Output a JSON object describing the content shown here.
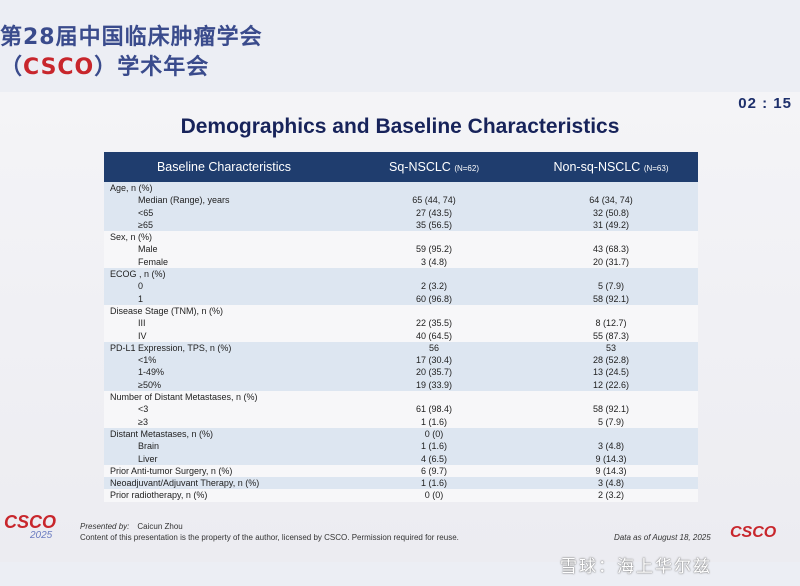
{
  "conference": {
    "line1": "第28届中国临床肿瘤学会",
    "line2_pre": "（",
    "line2_brand": "CSCO",
    "line2_post": "）学术年会"
  },
  "timer": "02 : 15",
  "title": "Demographics and Baseline Characteristics",
  "table": {
    "headers": {
      "col0": "Baseline Characteristics",
      "col1": "Sq-NSCLC",
      "col1_n": "(N=62)",
      "col2": "Non-sq-NSCLC",
      "col2_n": "(N=63)"
    },
    "rows": [
      {
        "label": "Age, n (%)",
        "sq": "",
        "nonsq": "",
        "indent": false,
        "shade": true
      },
      {
        "label": "Median (Range), years",
        "sq": "65 (44, 74)",
        "nonsq": "64 (34, 74)",
        "indent": true,
        "shade": true
      },
      {
        "label": "<65",
        "sq": "27 (43.5)",
        "nonsq": "32 (50.8)",
        "indent": true,
        "shade": true
      },
      {
        "label": "≥65",
        "sq": "35 (56.5)",
        "nonsq": "31 (49.2)",
        "indent": true,
        "shade": true
      },
      {
        "label": "Sex, n (%)",
        "sq": "",
        "nonsq": "",
        "indent": false,
        "shade": false
      },
      {
        "label": "Male",
        "sq": "59 (95.2)",
        "nonsq": "43 (68.3)",
        "indent": true,
        "shade": false
      },
      {
        "label": "Female",
        "sq": "3 (4.8)",
        "nonsq": "20 (31.7)",
        "indent": true,
        "shade": false
      },
      {
        "label": "ECOG , n (%)",
        "sq": "",
        "nonsq": "",
        "indent": false,
        "shade": true
      },
      {
        "label": "0",
        "sq": "2 (3.2)",
        "nonsq": "5 (7.9)",
        "indent": true,
        "shade": true
      },
      {
        "label": "1",
        "sq": "60 (96.8)",
        "nonsq": "58 (92.1)",
        "indent": true,
        "shade": true
      },
      {
        "label": "Disease Stage (TNM), n (%)",
        "sq": "",
        "nonsq": "",
        "indent": false,
        "shade": false
      },
      {
        "label": "III",
        "sq": "22 (35.5)",
        "nonsq": "8 (12.7)",
        "indent": true,
        "shade": false
      },
      {
        "label": "IV",
        "sq": "40 (64.5)",
        "nonsq": "55 (87.3)",
        "indent": true,
        "shade": false
      },
      {
        "label": "PD-L1 Expression, TPS, n (%)",
        "sq": "56",
        "nonsq": "53",
        "indent": false,
        "shade": true
      },
      {
        "label": "<1%",
        "sq": "17 (30.4)",
        "nonsq": "28 (52.8)",
        "indent": true,
        "shade": true
      },
      {
        "label": "1-49%",
        "sq": "20 (35.7)",
        "nonsq": "13 (24.5)",
        "indent": true,
        "shade": true
      },
      {
        "label": "≥50%",
        "sq": "19 (33.9)",
        "nonsq": "12 (22.6)",
        "indent": true,
        "shade": true
      },
      {
        "label": "Number of Distant Metastases, n (%)",
        "sq": "",
        "nonsq": "",
        "indent": false,
        "shade": false
      },
      {
        "label": "<3",
        "sq": "61 (98.4)",
        "nonsq": "58 (92.1)",
        "indent": true,
        "shade": false
      },
      {
        "label": "≥3",
        "sq": "1 (1.6)",
        "nonsq": "5 (7.9)",
        "indent": true,
        "shade": false
      },
      {
        "label": "Distant Metastases, n (%)",
        "sq": "0 (0)",
        "nonsq": "",
        "indent": false,
        "shade": true
      },
      {
        "label": "Brain",
        "sq": "1 (1.6)",
        "nonsq": "3 (4.8)",
        "indent": true,
        "shade": true
      },
      {
        "label": "Liver",
        "sq": "4 (6.5)",
        "nonsq": "9 (14.3)",
        "indent": true,
        "shade": true
      },
      {
        "label": "Prior Anti-tumor Surgery, n (%)",
        "sq": "6 (9.7)",
        "nonsq": "9 (14.3)",
        "indent": false,
        "shade": false
      },
      {
        "label": "Neoadjuvant/Adjuvant Therapy, n (%)",
        "sq": "1 (1.6)",
        "nonsq": "3 (4.8)",
        "indent": false,
        "shade": true
      },
      {
        "label": "Prior radiotherapy, n (%)",
        "sq": "0 (0)",
        "nonsq": "2 (3.2)",
        "indent": false,
        "shade": false
      }
    ]
  },
  "footer": {
    "presented_label": "Presented by:",
    "presenter": "Caicun Zhou",
    "rights": "Content of this presentation is the property of the author, licensed by CSCO. Permission required for reuse.",
    "data_as_of": "Data as of August 18, 2025"
  },
  "logos": {
    "left_main": "CSCO",
    "left_year": "2025",
    "right": "CSCO"
  },
  "watermark": "雪球：海上华尔兹",
  "colors": {
    "header_bg": "#1f3d6e",
    "shade_row": "#dde6f1",
    "title": "#17235a",
    "brand_red": "#c8262c"
  }
}
